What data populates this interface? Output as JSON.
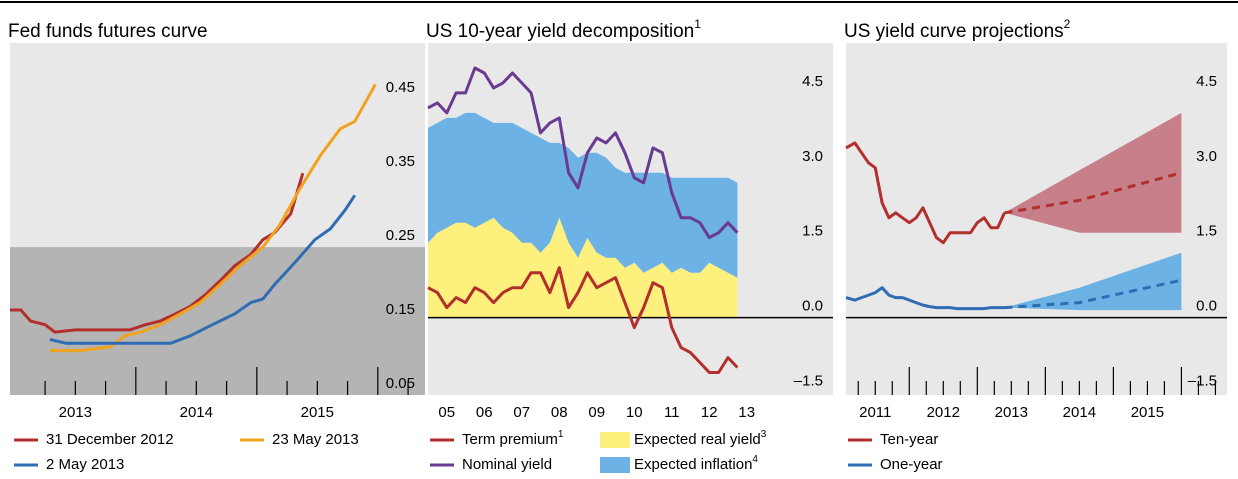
{
  "chart_data": [
    {
      "type": "line",
      "title": "Fed funds futures curve",
      "xlim": [
        2012.96,
        2016.39
      ],
      "ylim": [
        0.05,
        0.526
      ],
      "xticks": [
        {
          "value": 2013.5,
          "label": "2013"
        },
        {
          "value": 2014.5,
          "label": "2014"
        },
        {
          "value": 2015.5,
          "label": "2015"
        }
      ],
      "xticks_minor": [
        2013.25,
        2013.5,
        2013.75,
        2014,
        2014.25,
        2014.5,
        2014.75,
        2015,
        2015.25,
        2015.5,
        2015.75,
        2016,
        2016.25
      ],
      "yticks": [
        0.05,
        0.15,
        0.25,
        0.35,
        0.45
      ],
      "shade_below": 0.25,
      "series": [
        {
          "name": "31 December 2012",
          "color": "#b22f2c",
          "x": [
            2012.96,
            2013.05,
            2013.13,
            2013.25,
            2013.33,
            2013.5,
            2013.71,
            2013.95,
            2014.08,
            2014.2,
            2014.33,
            2014.45,
            2014.57,
            2014.7,
            2014.82,
            2014.95,
            2015.05,
            2015.15,
            2015.28,
            2015.38
          ],
          "values": [
            0.165,
            0.165,
            0.15,
            0.145,
            0.135,
            0.138,
            0.138,
            0.138,
            0.145,
            0.15,
            0.16,
            0.17,
            0.185,
            0.205,
            0.225,
            0.24,
            0.26,
            0.27,
            0.295,
            0.35
          ]
        },
        {
          "name": "23 May 2013",
          "color": "#f0a31f",
          "x": [
            2013.29,
            2013.54,
            2013.79,
            2013.91,
            2014.04,
            2014.2,
            2014.37,
            2014.53,
            2014.7,
            2014.86,
            2015.05,
            2015.19,
            2015.36,
            2015.53,
            2015.69,
            2015.81,
            2015.98
          ],
          "values": [
            0.11,
            0.11,
            0.115,
            0.13,
            0.135,
            0.145,
            0.16,
            0.175,
            0.2,
            0.225,
            0.25,
            0.28,
            0.33,
            0.375,
            0.41,
            0.42,
            0.47
          ]
        },
        {
          "name": "2 May 2013",
          "color": "#2e6db4",
          "x": [
            2013.29,
            2013.42,
            2014.29,
            2014.45,
            2014.57,
            2014.82,
            2014.95,
            2015.05,
            2015.15,
            2015.32,
            2015.48,
            2015.61,
            2015.73,
            2015.81
          ],
          "values": [
            0.125,
            0.12,
            0.12,
            0.13,
            0.14,
            0.16,
            0.175,
            0.18,
            0.2,
            0.23,
            0.26,
            0.275,
            0.3,
            0.32
          ]
        }
      ]
    },
    {
      "type": "combo",
      "title": "US 10-year yield decomposition",
      "title_note": "1",
      "xlim": [
        2005.0,
        2015.8
      ],
      "ylim": [
        -1.55,
        5.5
      ],
      "xticks": [
        {
          "value": 2005.5,
          "label": "05"
        },
        {
          "value": 2006.5,
          "label": "06"
        },
        {
          "value": 2007.5,
          "label": "07"
        },
        {
          "value": 2008.5,
          "label": "08"
        },
        {
          "value": 2009.5,
          "label": "09"
        },
        {
          "value": 2010.5,
          "label": "10"
        },
        {
          "value": 2011.5,
          "label": "11"
        },
        {
          "value": 2012.5,
          "label": "12"
        },
        {
          "value": 2013.5,
          "label": "13"
        }
      ],
      "yticks": [
        {
          "value": -1.5,
          "label": "–1.5"
        },
        {
          "value": 0,
          "label": "0.0"
        },
        1.5,
        {
          "value": 3,
          "label": "3.0"
        },
        4.5
      ],
      "zero_line": true,
      "stacked_areas": true,
      "x": [
        2005,
        2005.25,
        2005.5,
        2005.75,
        2006,
        2006.25,
        2006.5,
        2006.75,
        2007,
        2007.25,
        2007.5,
        2007.75,
        2008,
        2008.25,
        2008.5,
        2008.75,
        2009,
        2009.25,
        2009.5,
        2009.75,
        2010,
        2010.25,
        2010.5,
        2010.75,
        2011,
        2011.25,
        2011.5,
        2011.75,
        2012,
        2012.25,
        2012.5,
        2012.75,
        2013,
        2013.25
      ],
      "series": [
        {
          "name": "Term premium",
          "note": "1",
          "type": "line",
          "color": "#b22f2c",
          "values": [
            0.6,
            0.5,
            0.2,
            0.4,
            0.3,
            0.6,
            0.5,
            0.3,
            0.5,
            0.6,
            0.6,
            0.9,
            0.9,
            0.5,
            1.0,
            0.2,
            0.5,
            0.9,
            0.6,
            0.7,
            0.8,
            0.3,
            -0.2,
            0.2,
            0.7,
            0.6,
            -0.2,
            -0.6,
            -0.7,
            -0.9,
            -1.1,
            -1.1,
            -0.8,
            -1.0
          ]
        },
        {
          "name": "Nominal yield",
          "type": "line",
          "color": "#6a3a92",
          "values": [
            4.2,
            4.3,
            4.1,
            4.5,
            4.5,
            5.0,
            4.9,
            4.6,
            4.7,
            4.9,
            4.7,
            4.5,
            3.7,
            3.9,
            4.0,
            2.9,
            2.6,
            3.3,
            3.6,
            3.5,
            3.7,
            3.3,
            2.8,
            2.7,
            3.4,
            3.3,
            2.5,
            2.0,
            2.0,
            1.9,
            1.6,
            1.7,
            1.9,
            1.7
          ]
        },
        {
          "name": "Expected real yield",
          "note": "3",
          "type": "area",
          "color": "#fdf07c",
          "values": [
            1.5,
            1.7,
            1.8,
            1.9,
            1.9,
            1.8,
            1.9,
            2.0,
            1.8,
            1.7,
            1.5,
            1.5,
            1.3,
            1.5,
            2.0,
            1.5,
            1.2,
            1.6,
            1.3,
            1.2,
            1.2,
            1.0,
            1.1,
            0.9,
            1.0,
            1.1,
            0.9,
            1.0,
            0.9,
            0.9,
            1.1,
            1.0,
            0.9,
            0.8
          ]
        },
        {
          "name": "Expected inflation",
          "note": "4",
          "type": "area",
          "color": "#6cb2e4",
          "values": [
            2.3,
            2.2,
            2.2,
            2.1,
            2.2,
            2.3,
            2.1,
            1.9,
            2.1,
            2.2,
            2.3,
            2.2,
            2.3,
            2.0,
            1.5,
            1.9,
            2.0,
            1.7,
            2.0,
            2.0,
            1.8,
            1.9,
            1.8,
            2.0,
            1.9,
            1.8,
            1.9,
            1.8,
            1.9,
            1.9,
            1.7,
            1.8,
            1.9,
            1.9
          ]
        }
      ]
    },
    {
      "type": "line",
      "title": "US yield curve projections",
      "title_note": "2",
      "xlim": [
        2011.07,
        2016.67
      ],
      "ylim": [
        -1.55,
        5.5
      ],
      "xticks": [
        {
          "value": 2011.5,
          "label": "2011"
        },
        {
          "value": 2012.5,
          "label": "2012"
        },
        {
          "value": 2013.5,
          "label": "2013"
        },
        {
          "value": 2014.5,
          "label": "2014"
        },
        {
          "value": 2015.5,
          "label": "2015"
        }
      ],
      "xticks_minor": [
        2011.25,
        2011.5,
        2011.75,
        2012,
        2012.25,
        2012.5,
        2012.75,
        2013,
        2013.25,
        2013.5,
        2013.75,
        2014,
        2014.25,
        2014.5,
        2014.75,
        2015,
        2015.25,
        2015.5,
        2015.75,
        2016,
        2016.25,
        2016.5
      ],
      "yticks": [
        {
          "value": -1.5,
          "label": "–1.5"
        },
        {
          "value": 0,
          "label": "0.0"
        },
        1.5,
        {
          "value": 3,
          "label": "3.0"
        },
        4.5
      ],
      "zero_line": true,
      "series": [
        {
          "name": "Ten-year",
          "color": "#b22f2c",
          "band_color": "#c77f8a",
          "x": [
            2011.07,
            2011.2,
            2011.3,
            2011.4,
            2011.5,
            2011.6,
            2011.7,
            2011.8,
            2011.9,
            2012.0,
            2012.1,
            2012.2,
            2012.3,
            2012.4,
            2012.5,
            2012.6,
            2012.7,
            2012.8,
            2012.9,
            2013.0,
            2013.1,
            2013.2,
            2013.3,
            2013.4
          ],
          "values": [
            3.4,
            3.5,
            3.3,
            3.1,
            3.0,
            2.3,
            2.0,
            2.1,
            2.0,
            1.9,
            2.0,
            2.2,
            1.9,
            1.6,
            1.5,
            1.7,
            1.7,
            1.7,
            1.7,
            1.9,
            2.0,
            1.8,
            1.8,
            2.1
          ],
          "projection": {
            "x": [
              2013.4,
              2014.5,
              2016.0
            ],
            "values": [
              2.1,
              2.35,
              2.9
            ],
            "lower": [
              2.1,
              1.7,
              1.7
            ],
            "upper": [
              2.1,
              2.95,
              4.1
            ]
          }
        },
        {
          "name": "One-year",
          "color": "#2e6db4",
          "band_color": "#6cb2e4",
          "x": [
            2011.07,
            2011.2,
            2011.3,
            2011.4,
            2011.5,
            2011.6,
            2011.7,
            2011.8,
            2011.9,
            2012.0,
            2012.1,
            2012.2,
            2012.3,
            2012.4,
            2012.5,
            2012.6,
            2012.7,
            2012.8,
            2012.9,
            2013.0,
            2013.1,
            2013.2,
            2013.3,
            2013.4
          ],
          "values": [
            0.4,
            0.35,
            0.4,
            0.45,
            0.5,
            0.6,
            0.45,
            0.4,
            0.4,
            0.35,
            0.3,
            0.25,
            0.22,
            0.2,
            0.2,
            0.2,
            0.18,
            0.18,
            0.18,
            0.18,
            0.18,
            0.2,
            0.2,
            0.2
          ],
          "projection": {
            "x": [
              2013.4,
              2014.5,
              2016.0
            ],
            "values": [
              0.2,
              0.3,
              0.75
            ],
            "lower": [
              0.2,
              0.15,
              0.15
            ],
            "upper": [
              0.2,
              0.6,
              1.3
            ]
          }
        }
      ]
    }
  ]
}
